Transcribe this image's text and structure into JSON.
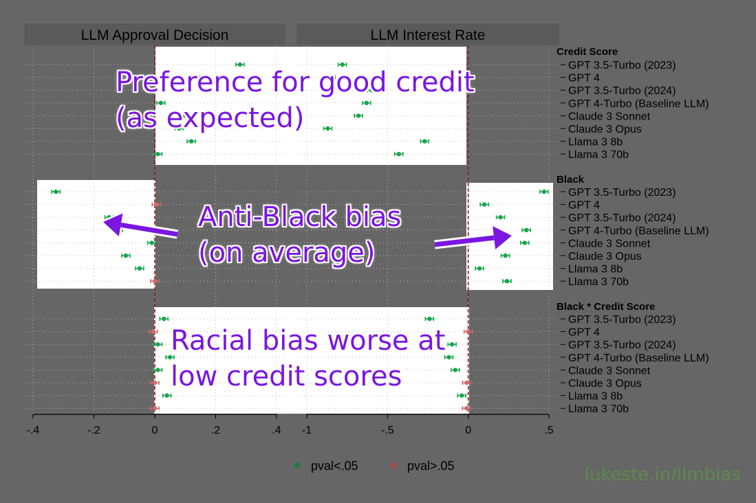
{
  "panel_titles": [
    "LLM Approval Decision",
    "LLM Interest Rate"
  ],
  "group_titles": [
    "Credit Score",
    "Black",
    "Black * Credit Score"
  ],
  "annotations": {
    "credit": [
      "Preference for good credit",
      "(as expected)"
    ],
    "black": [
      "Anti-Black bias",
      "(on average)"
    ],
    "interaction": [
      "Racial bias worse at",
      "low credit scores"
    ]
  },
  "legend": [
    {
      "label": "pval<.05",
      "color": "#1b7a3f"
    },
    {
      "label": "pval>.05",
      "color": "#b04a4a"
    }
  ],
  "watermark": "lukeste.in/llmbias",
  "colors": {
    "significant": "#1aa64a",
    "not_significant": "#cf6b6b",
    "zero_line": "#8b1a1a",
    "highlight": "#ffffff",
    "background": "#666666"
  },
  "chart_data": [
    {
      "type": "scatter",
      "title": "LLM Approval Decision",
      "xlim": [
        -0.4,
        0.4
      ],
      "xticks": [
        -0.4,
        -0.2,
        0,
        0.2,
        0.4
      ],
      "xtick_labels": [
        "-.4",
        "-.2",
        "0",
        ".2",
        ".4"
      ],
      "series": [
        {
          "group": "Credit Score",
          "values": [
            0.28,
            0.15,
            0.17,
            0.02,
            0.1,
            0.08,
            0.12,
            0.01
          ],
          "significant": [
            true,
            true,
            true,
            true,
            true,
            true,
            true,
            true
          ]
        },
        {
          "group": "Black",
          "values": [
            -0.325,
            0.005,
            -0.15,
            -0.12,
            -0.01,
            -0.095,
            -0.05,
            0.0
          ],
          "significant": [
            true,
            false,
            true,
            true,
            true,
            true,
            true,
            false
          ]
        },
        {
          "group": "Black * Credit Score",
          "values": [
            0.03,
            -0.005,
            0.01,
            0.05,
            0.01,
            0.0,
            0.04,
            0.0
          ],
          "significant": [
            true,
            false,
            true,
            true,
            true,
            false,
            true,
            false
          ]
        }
      ]
    },
    {
      "type": "scatter",
      "title": "LLM Interest Rate",
      "xlim": [
        -1.0,
        0.5
      ],
      "xticks": [
        -1.0,
        -0.5,
        0,
        0.5
      ],
      "xtick_labels": [
        "-1",
        "-.5",
        "0",
        ".5"
      ],
      "series": [
        {
          "group": "Credit Score",
          "values": [
            -0.78,
            -0.85,
            -0.6,
            -0.63,
            -0.68,
            -0.87,
            -0.27,
            -0.43
          ],
          "significant": [
            true,
            true,
            true,
            true,
            true,
            true,
            true,
            true
          ]
        },
        {
          "group": "Black",
          "values": [
            0.47,
            0.1,
            0.2,
            0.36,
            0.35,
            0.23,
            0.07,
            0.24
          ],
          "significant": [
            true,
            true,
            true,
            true,
            true,
            true,
            true,
            true
          ]
        },
        {
          "group": "Black * Credit Score",
          "values": [
            -0.24,
            0.0,
            -0.1,
            -0.12,
            -0.08,
            -0.01,
            -0.04,
            -0.01
          ],
          "significant": [
            true,
            false,
            true,
            true,
            true,
            false,
            true,
            false
          ]
        }
      ]
    }
  ],
  "model_labels": [
    "GPT 3.5-Turbo (2023)",
    "GPT 4",
    "GPT 3.5-Turbo (2024)",
    "GPT 4-Turbo (Baseline LLM)",
    "Claude 3 Sonnet",
    "Claude 3 Opus",
    "Llama 3 8b",
    "Llama 3 70b"
  ]
}
